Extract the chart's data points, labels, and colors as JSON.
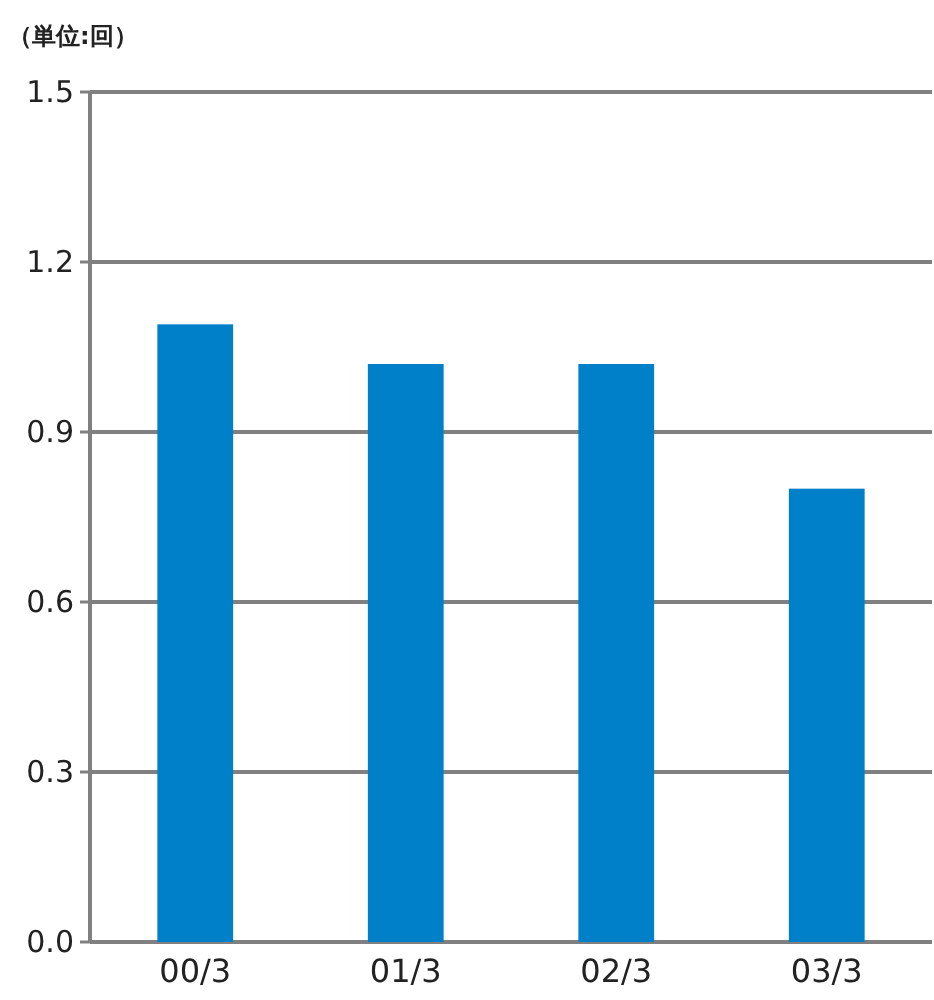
{
  "chart_data": {
    "type": "bar",
    "ylabel": "（単位:回）",
    "categories": [
      "00/3",
      "01/3",
      "02/3",
      "03/3"
    ],
    "values": [
      1.09,
      1.02,
      1.02,
      0.8
    ],
    "color": "#0080c8",
    "ylim": [
      0,
      1.5
    ],
    "yticks": [
      {
        "value": 0,
        "label": "0.0"
      },
      0.3,
      0.6,
      0.9,
      1.2,
      1.5
    ],
    "grid": "y"
  }
}
